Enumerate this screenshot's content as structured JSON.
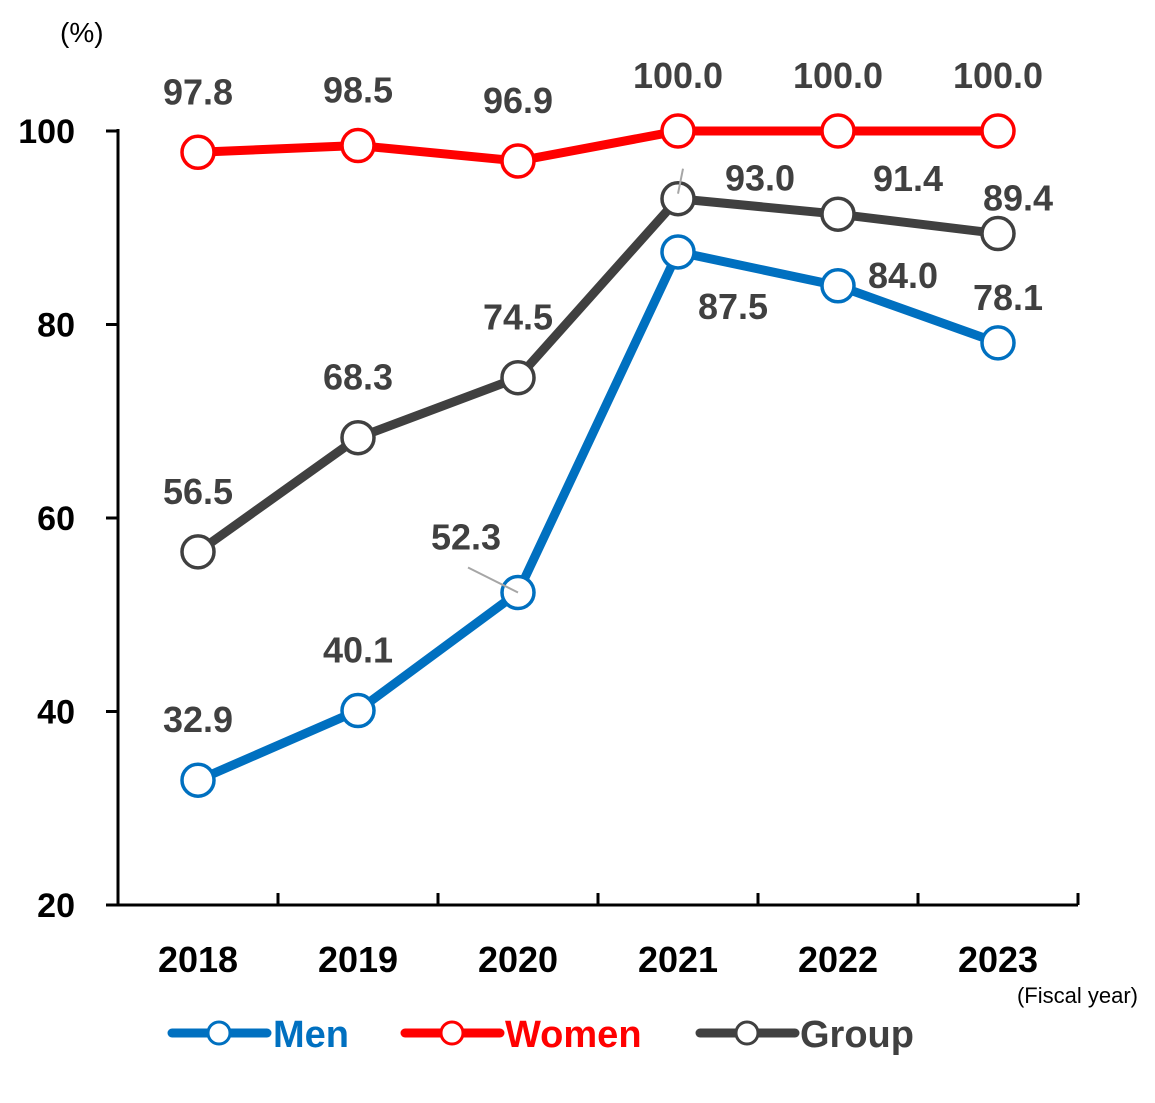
{
  "chart_data": {
    "type": "line",
    "title": "",
    "ylabel": "(%)",
    "xlabel": "(Fiscal year)",
    "categories": [
      "2018",
      "2019",
      "2020",
      "2021",
      "2022",
      "2023"
    ],
    "ylim": [
      20,
      100
    ],
    "yticks": [
      20,
      40,
      60,
      80,
      100
    ],
    "grid": false,
    "legend_position": "bottom",
    "series": [
      {
        "name": "Men",
        "color": "#0070C0",
        "values": [
          32.9,
          40.1,
          52.3,
          87.5,
          84.0,
          78.1
        ],
        "labels": [
          "32.9",
          "40.1",
          "52.3",
          "87.5",
          "84.0",
          "78.1"
        ]
      },
      {
        "name": "Women",
        "color": "#FF0000",
        "values": [
          97.8,
          98.5,
          96.9,
          100.0,
          100.0,
          100.0
        ],
        "labels": [
          "97.8",
          "98.5",
          "96.9",
          "100.0",
          "100.0",
          "100.0"
        ]
      },
      {
        "name": "Group",
        "color": "#404040",
        "values": [
          56.5,
          68.3,
          74.5,
          93.0,
          91.4,
          89.4
        ],
        "labels": [
          "56.5",
          "68.3",
          "74.5",
          "93.0",
          "91.4",
          "89.4"
        ]
      }
    ]
  }
}
